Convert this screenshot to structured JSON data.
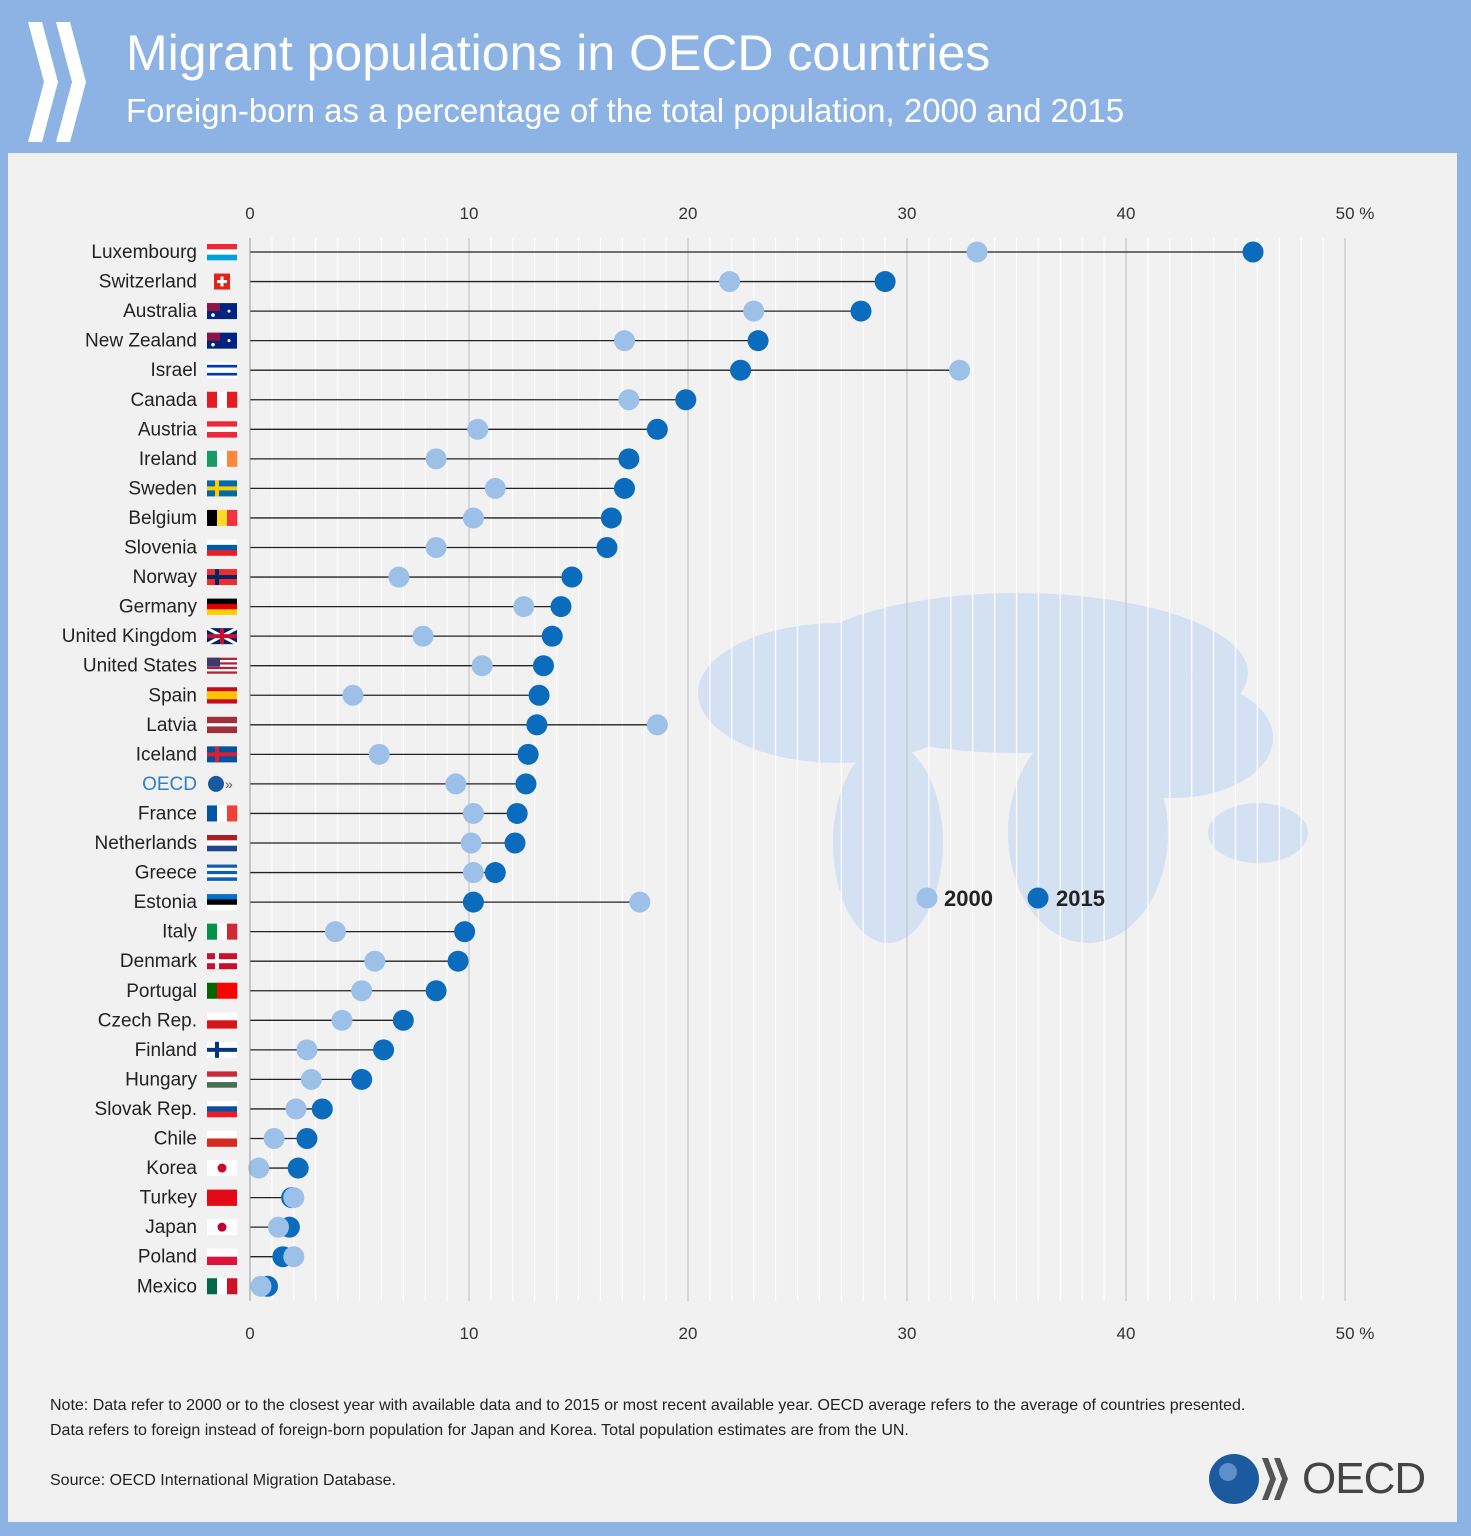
{
  "header": {
    "title": "Migrant populations in OECD countries",
    "subtitle": "Foreign-born as a percentage of the total population, 2000 and 2015"
  },
  "colors": {
    "y2000": "#9dc0e9",
    "y2015": "#0b6cbd",
    "highlight": "#2f7fc8"
  },
  "chart_data": {
    "type": "dumbbell",
    "title": "Migrant populations in OECD countries",
    "subtitle": "Foreign-born as a percentage of the total population, 2000 and 2015",
    "xlim": [
      0,
      50
    ],
    "xticks": [
      "0",
      "10",
      "20",
      "30",
      "40",
      "50 %"
    ],
    "legend": [
      {
        "name": "2000"
      },
      {
        "name": "2015"
      }
    ],
    "legend_position": "center-right",
    "countries": [
      {
        "name": "Luxembourg",
        "v2000": 33.2,
        "v2015": 45.8,
        "flag": [
          "h",
          "#ed2939",
          "#fff",
          "#00a1de"
        ]
      },
      {
        "name": "Switzerland",
        "v2000": 21.9,
        "v2015": 29.0,
        "flag": [
          "ch",
          "#e2231a"
        ]
      },
      {
        "name": "Australia",
        "v2000": 23.0,
        "v2015": 27.9,
        "flag": [
          "au",
          "#00247d"
        ]
      },
      {
        "name": "New Zealand",
        "v2000": 17.1,
        "v2015": 23.2,
        "flag": [
          "au",
          "#00247d"
        ]
      },
      {
        "name": "Israel",
        "v2000": 32.4,
        "v2015": 22.4,
        "flag": [
          "h",
          "#fff",
          "#0038b8",
          "#fff",
          "#fff",
          "#0038b8",
          "#fff"
        ]
      },
      {
        "name": "Canada",
        "v2000": 17.3,
        "v2015": 19.9,
        "flag": [
          "v",
          "#e31b23",
          "#fff",
          "#e31b23"
        ]
      },
      {
        "name": "Austria",
        "v2000": 10.4,
        "v2015": 18.6,
        "flag": [
          "h",
          "#ed2939",
          "#fff",
          "#ed2939"
        ]
      },
      {
        "name": "Ireland",
        "v2000": 8.5,
        "v2015": 17.3,
        "flag": [
          "v",
          "#169b62",
          "#fff",
          "#ff883e"
        ]
      },
      {
        "name": "Sweden",
        "v2000": 11.2,
        "v2015": 17.1,
        "flag": [
          "nordic",
          "#006aa7",
          "#fecc00"
        ]
      },
      {
        "name": "Belgium",
        "v2000": 10.2,
        "v2015": 16.5,
        "flag": [
          "v",
          "#000",
          "#fdda24",
          "#ef3340"
        ]
      },
      {
        "name": "Slovenia",
        "v2000": 8.5,
        "v2015": 16.3,
        "flag": [
          "h",
          "#fff",
          "#005da4",
          "#ed1c24"
        ]
      },
      {
        "name": "Norway",
        "v2000": 6.8,
        "v2015": 14.7,
        "flag": [
          "nordic",
          "#ef2b2d",
          "#002868"
        ]
      },
      {
        "name": "Germany",
        "v2000": 12.5,
        "v2015": 14.2,
        "flag": [
          "h",
          "#000",
          "#dd0000",
          "#ffce00"
        ]
      },
      {
        "name": "United Kingdom",
        "v2000": 7.9,
        "v2015": 13.8,
        "flag": [
          "uk",
          "#012169"
        ]
      },
      {
        "name": "United States",
        "v2000": 10.6,
        "v2015": 13.4,
        "flag": [
          "us",
          "#b22234"
        ]
      },
      {
        "name": "Spain",
        "v2000": 4.7,
        "v2015": 13.2,
        "flag": [
          "h",
          "#c60b1e",
          "#ffc400",
          "#ffc400",
          "#c60b1e"
        ]
      },
      {
        "name": "Latvia",
        "v2000": 18.6,
        "v2015": 13.1,
        "flag": [
          "h",
          "#9e3039",
          "#9e3039",
          "#fff",
          "#9e3039",
          "#9e3039"
        ]
      },
      {
        "name": "Iceland",
        "v2000": 5.9,
        "v2015": 12.7,
        "flag": [
          "nordic",
          "#02529c",
          "#dc1e35"
        ]
      },
      {
        "name": "OECD",
        "v2000": 9.4,
        "v2015": 12.6,
        "flag": [
          "oecd",
          "#1c5aa0"
        ],
        "highlight": true
      },
      {
        "name": "France",
        "v2000": 10.2,
        "v2015": 12.2,
        "flag": [
          "v",
          "#0055a4",
          "#fff",
          "#ef4135"
        ]
      },
      {
        "name": "Netherlands",
        "v2000": 10.1,
        "v2015": 12.1,
        "flag": [
          "h",
          "#ae1c28",
          "#fff",
          "#21468b"
        ]
      },
      {
        "name": "Greece",
        "v2000": 10.2,
        "v2015": 11.2,
        "flag": [
          "h",
          "#0d5eaf",
          "#fff",
          "#0d5eaf",
          "#fff",
          "#0d5eaf"
        ]
      },
      {
        "name": "Estonia",
        "v2000": 17.8,
        "v2015": 10.2,
        "flag": [
          "h",
          "#0072ce",
          "#000",
          "#fff"
        ]
      },
      {
        "name": "Italy",
        "v2000": 3.9,
        "v2015": 9.8,
        "flag": [
          "v",
          "#009246",
          "#fff",
          "#ce2b37"
        ]
      },
      {
        "name": "Denmark",
        "v2000": 5.7,
        "v2015": 9.5,
        "flag": [
          "nordic",
          "#c8102e",
          "#fff"
        ]
      },
      {
        "name": "Portugal",
        "v2000": 5.1,
        "v2015": 8.5,
        "flag": [
          "v",
          "#006600",
          "#ff0000",
          "#ff0000"
        ]
      },
      {
        "name": "Czech Rep.",
        "v2000": 4.2,
        "v2015": 7.0,
        "flag": [
          "h",
          "#fff",
          "#d7141a"
        ]
      },
      {
        "name": "Finland",
        "v2000": 2.6,
        "v2015": 6.1,
        "flag": [
          "nordic",
          "#fff",
          "#003580"
        ]
      },
      {
        "name": "Hungary",
        "v2000": 2.8,
        "v2015": 5.1,
        "flag": [
          "h",
          "#ce2939",
          "#fff",
          "#477050"
        ]
      },
      {
        "name": "Slovak Rep.",
        "v2000": 2.1,
        "v2015": 3.3,
        "flag": [
          "h",
          "#fff",
          "#0b4ea2",
          "#ee1c25"
        ]
      },
      {
        "name": "Chile",
        "v2000": 1.1,
        "v2015": 2.6,
        "flag": [
          "h",
          "#fff",
          "#d52b1e"
        ]
      },
      {
        "name": "Korea",
        "v2000": 0.4,
        "v2015": 2.2,
        "flag": [
          "dot",
          "#fff",
          "#c60c30"
        ]
      },
      {
        "name": "Turkey",
        "v2000": 2.0,
        "v2015": 1.9,
        "flag": [
          "h",
          "#e30a17"
        ]
      },
      {
        "name": "Japan",
        "v2000": 1.3,
        "v2015": 1.8,
        "flag": [
          "dot",
          "#fff",
          "#bc002d"
        ]
      },
      {
        "name": "Poland",
        "v2000": 2.0,
        "v2015": 1.5,
        "flag": [
          "h",
          "#fff",
          "#dc143c"
        ]
      },
      {
        "name": "Mexico",
        "v2000": 0.5,
        "v2015": 0.8,
        "flag": [
          "v",
          "#006847",
          "#fff",
          "#ce1126"
        ]
      }
    ]
  },
  "notes": {
    "line1": "Note: Data refer to 2000 or to the closest year with available data and to 2015 or most recent available year. OECD average refers to the average of countries presented.",
    "line2": "Data refers to foreign instead of foreign-born population for Japan and Korea. Total population estimates are from the UN.",
    "source": "Source: OECD International Migration Database.",
    "brand": "OECD"
  }
}
